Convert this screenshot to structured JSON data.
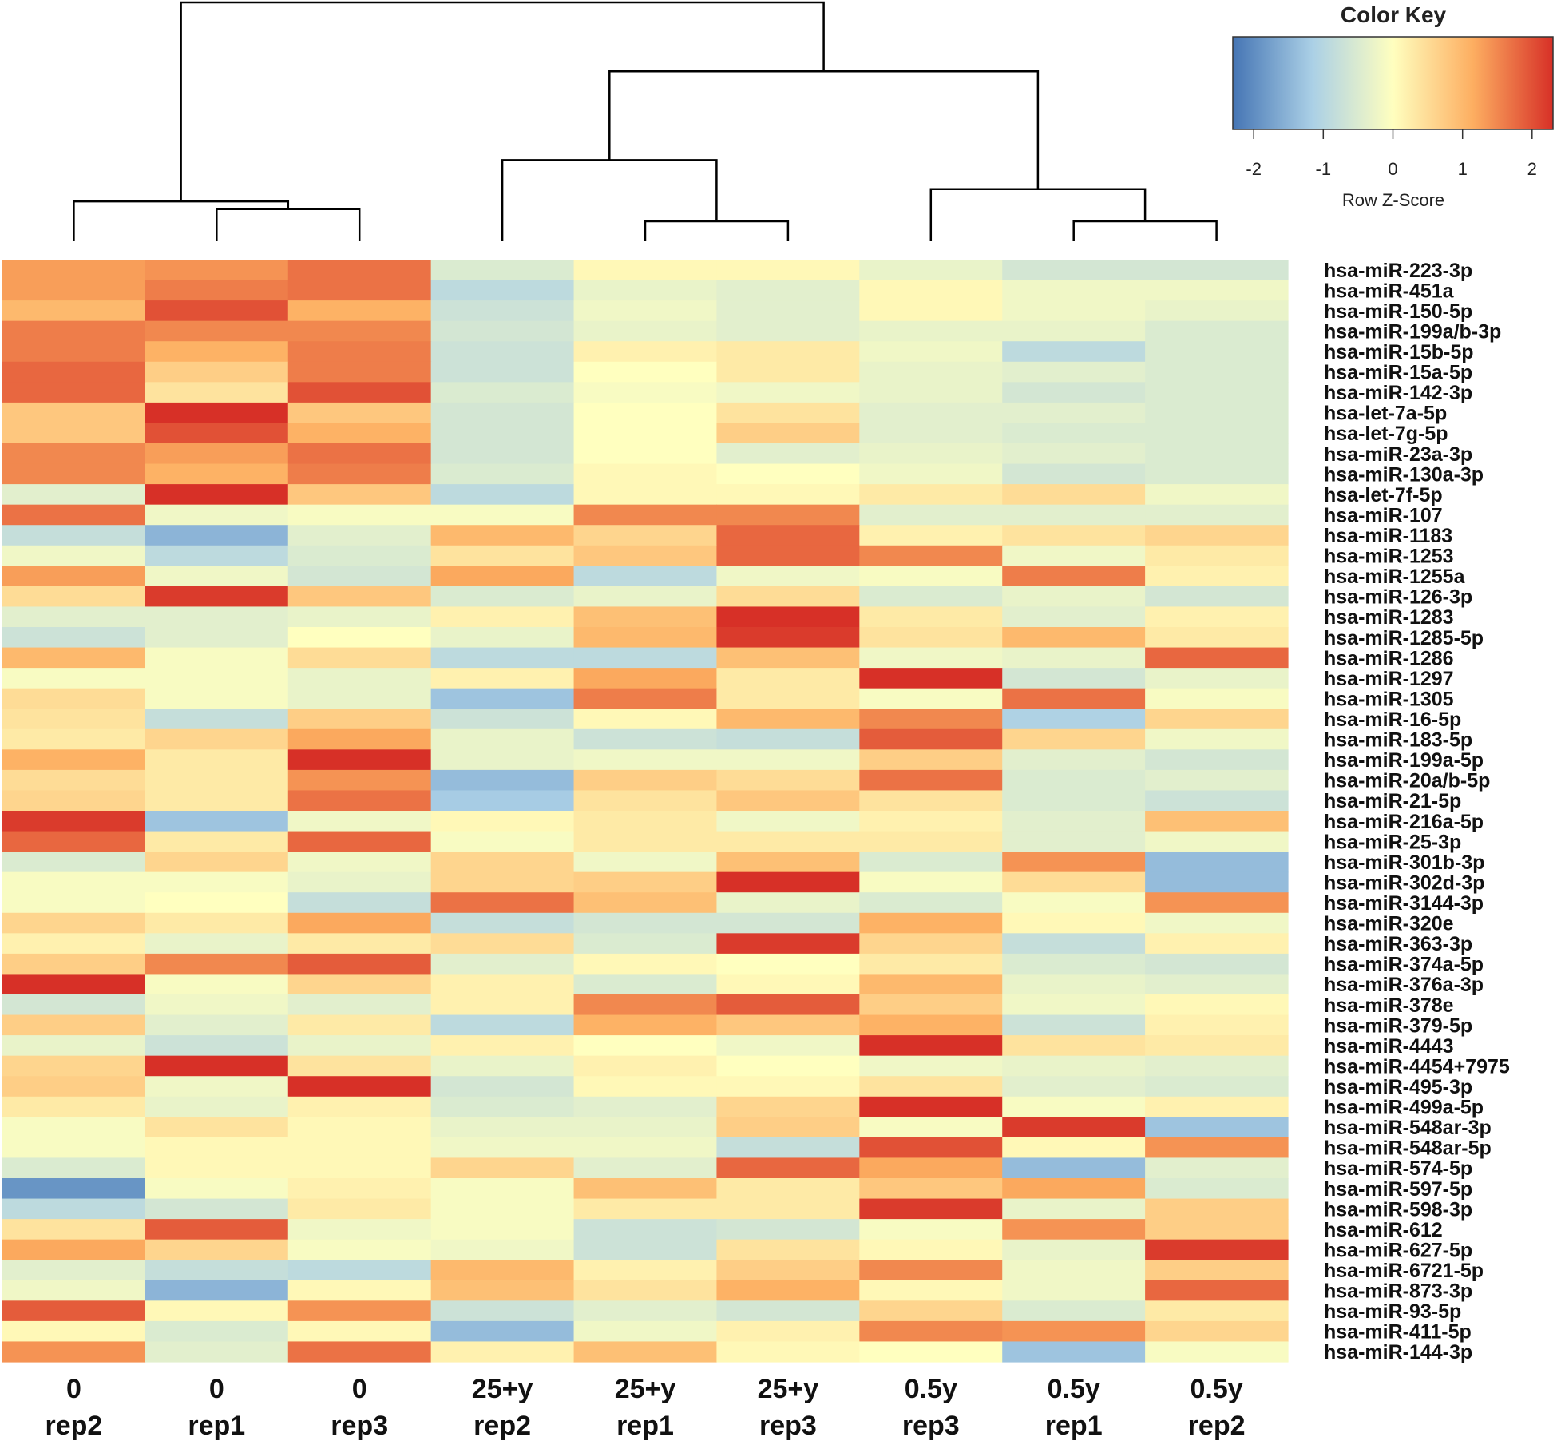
{
  "chart_data": {
    "type": "heatmap",
    "title": "",
    "color_key": {
      "title": "Color Key",
      "label": "Row Z-Score",
      "ticks": [
        "-2",
        "-1",
        "0",
        "1",
        "2"
      ],
      "range": [
        -2.3,
        2.3
      ],
      "colors": [
        "#4575b4",
        "#abd0e6",
        "#ffffbf",
        "#fdae61",
        "#d73027"
      ]
    },
    "columns": [
      {
        "group": "0",
        "rep": "rep2"
      },
      {
        "group": "0",
        "rep": "rep1"
      },
      {
        "group": "0",
        "rep": "rep3"
      },
      {
        "group": "25+y",
        "rep": "rep2"
      },
      {
        "group": "25+y",
        "rep": "rep1"
      },
      {
        "group": "25+y",
        "rep": "rep3"
      },
      {
        "group": "0.5y",
        "rep": "rep3"
      },
      {
        "group": "0.5y",
        "rep": "rep1"
      },
      {
        "group": "0.5y",
        "rep": "rep2"
      }
    ],
    "rows": [
      "hsa-miR-223-3p",
      "hsa-miR-451a",
      "hsa-miR-150-5p",
      "hsa-miR-199a/b-3p",
      "hsa-miR-15b-5p",
      "hsa-miR-15a-5p",
      "hsa-miR-142-3p",
      "hsa-let-7a-5p",
      "hsa-let-7g-5p",
      "hsa-miR-23a-3p",
      "hsa-miR-130a-3p",
      "hsa-let-7f-5p",
      "hsa-miR-107",
      "hsa-miR-1183",
      "hsa-miR-1253",
      "hsa-miR-1255a",
      "hsa-miR-126-3p",
      "hsa-miR-1283",
      "hsa-miR-1285-5p",
      "hsa-miR-1286",
      "hsa-miR-1297",
      "hsa-miR-1305",
      "hsa-miR-16-5p",
      "hsa-miR-183-5p",
      "hsa-miR-199a-5p",
      "hsa-miR-20a/b-5p",
      "hsa-miR-21-5p",
      "hsa-miR-216a-5p",
      "hsa-miR-25-3p",
      "hsa-miR-301b-3p",
      "hsa-miR-302d-3p",
      "hsa-miR-3144-3p",
      "hsa-miR-320e",
      "hsa-miR-363-3p",
      "hsa-miR-374a-5p",
      "hsa-miR-376a-3p",
      "hsa-miR-378e",
      "hsa-miR-379-5p",
      "hsa-miR-4443",
      "hsa-miR-4454+7975",
      "hsa-miR-495-3p",
      "hsa-miR-499a-5p",
      "hsa-miR-548ar-3p",
      "hsa-miR-548ar-5p",
      "hsa-miR-574-5p",
      "hsa-miR-597-5p",
      "hsa-miR-598-3p",
      "hsa-miR-612",
      "hsa-miR-627-5p",
      "hsa-miR-6721-5p",
      "hsa-miR-873-3p",
      "hsa-miR-93-5p",
      "hsa-miR-411-5p",
      "hsa-miR-144-3p"
    ],
    "values": [
      [
        1.3,
        1.4,
        1.7,
        -0.5,
        0.1,
        0.1,
        -0.3,
        -0.6,
        -0.6
      ],
      [
        1.3,
        1.6,
        1.7,
        -0.9,
        -0.3,
        -0.4,
        0.1,
        -0.2,
        -0.2
      ],
      [
        1.0,
        2.0,
        1.1,
        -0.7,
        -0.2,
        -0.4,
        0.1,
        -0.2,
        -0.3
      ],
      [
        1.6,
        1.5,
        1.5,
        -0.6,
        -0.3,
        -0.4,
        -0.3,
        -0.3,
        -0.5
      ],
      [
        1.6,
        1.1,
        1.6,
        -0.7,
        0.2,
        0.3,
        -0.2,
        -0.9,
        -0.5
      ],
      [
        1.8,
        0.7,
        1.6,
        -0.7,
        0.0,
        0.3,
        -0.3,
        -0.4,
        -0.5
      ],
      [
        1.8,
        0.4,
        2.0,
        -0.5,
        -0.1,
        -0.2,
        -0.3,
        -0.6,
        -0.5
      ],
      [
        0.8,
        2.3,
        0.8,
        -0.6,
        0.0,
        0.4,
        -0.4,
        -0.4,
        -0.5
      ],
      [
        0.8,
        2.0,
        1.1,
        -0.6,
        0.0,
        0.7,
        -0.4,
        -0.5,
        -0.5
      ],
      [
        1.5,
        1.3,
        1.7,
        -0.6,
        0.0,
        -0.4,
        -0.3,
        -0.4,
        -0.5
      ],
      [
        1.5,
        1.1,
        1.6,
        -0.5,
        0.1,
        0.0,
        -0.2,
        -0.6,
        -0.5
      ],
      [
        -0.4,
        2.3,
        0.8,
        -0.9,
        0.1,
        0.1,
        0.3,
        0.5,
        -0.2
      ],
      [
        1.7,
        -0.2,
        -0.1,
        -0.1,
        1.5,
        1.5,
        -0.4,
        -0.4,
        -0.4
      ],
      [
        -0.8,
        -1.5,
        -0.4,
        1.0,
        0.6,
        1.8,
        0.2,
        0.4,
        0.6
      ],
      [
        -0.2,
        -0.9,
        -0.5,
        0.4,
        0.8,
        1.8,
        1.5,
        -0.2,
        0.3
      ],
      [
        1.3,
        -0.2,
        -0.6,
        1.2,
        -0.9,
        -0.2,
        -0.1,
        1.6,
        0.2
      ],
      [
        0.5,
        2.2,
        0.8,
        -0.5,
        -0.3,
        0.5,
        -0.5,
        -0.3,
        -0.6
      ],
      [
        -0.4,
        -0.4,
        -0.3,
        0.2,
        0.9,
        2.3,
        0.3,
        -0.4,
        0.2
      ],
      [
        -0.7,
        -0.4,
        0.0,
        -0.3,
        1.0,
        2.2,
        0.4,
        1.0,
        0.3
      ],
      [
        1.0,
        -0.1,
        0.5,
        -0.9,
        -0.9,
        0.9,
        -0.2,
        -0.3,
        1.8
      ],
      [
        -0.1,
        -0.1,
        -0.3,
        0.2,
        1.2,
        0.3,
        2.3,
        -0.6,
        -0.3
      ],
      [
        0.5,
        -0.1,
        -0.3,
        -1.3,
        1.6,
        0.3,
        -0.1,
        1.7,
        -0.1
      ],
      [
        0.4,
        -0.8,
        0.7,
        -0.7,
        0.1,
        1.0,
        1.5,
        -1.1,
        0.6
      ],
      [
        0.3,
        0.6,
        1.2,
        -0.3,
        -0.7,
        -0.8,
        1.9,
        0.6,
        -0.2
      ],
      [
        1.1,
        0.3,
        2.3,
        -0.3,
        -0.2,
        -0.2,
        0.7,
        -0.4,
        -0.6
      ],
      [
        0.5,
        0.3,
        1.4,
        -1.4,
        0.7,
        0.5,
        1.7,
        -0.5,
        -0.4
      ],
      [
        0.6,
        0.3,
        1.7,
        -1.2,
        0.4,
        0.8,
        0.4,
        -0.5,
        -0.7
      ],
      [
        2.2,
        -1.3,
        -0.2,
        0.1,
        0.3,
        -0.2,
        0.2,
        -0.4,
        0.9
      ],
      [
        1.8,
        0.3,
        1.8,
        -0.1,
        0.3,
        0.3,
        0.3,
        -0.4,
        -0.2
      ],
      [
        -0.5,
        0.6,
        -0.2,
        0.6,
        -0.2,
        0.9,
        -0.5,
        1.4,
        -1.4
      ],
      [
        -0.1,
        -0.1,
        -0.3,
        0.6,
        0.7,
        2.3,
        -0.1,
        0.5,
        -1.4
      ],
      [
        -0.1,
        0.0,
        -0.8,
        1.7,
        0.9,
        -0.3,
        -0.5,
        -0.1,
        1.4
      ],
      [
        0.6,
        0.3,
        1.2,
        -0.8,
        -0.6,
        -0.6,
        1.1,
        0.1,
        -0.2
      ],
      [
        0.2,
        -0.3,
        0.3,
        0.5,
        -0.5,
        2.2,
        0.6,
        -0.8,
        0.2
      ],
      [
        0.7,
        1.5,
        1.9,
        -0.4,
        0.1,
        0.0,
        0.3,
        -0.5,
        -0.6
      ],
      [
        2.3,
        -0.1,
        0.6,
        0.2,
        -0.5,
        0.1,
        1.0,
        -0.3,
        -0.4
      ],
      [
        -0.6,
        -0.2,
        -0.4,
        0.2,
        1.5,
        1.9,
        0.7,
        -0.2,
        0.1
      ],
      [
        0.7,
        -0.4,
        0.3,
        -0.9,
        1.1,
        0.8,
        1.1,
        -0.7,
        0.2
      ],
      [
        -0.3,
        -0.7,
        -0.3,
        0.2,
        0.0,
        -0.2,
        2.4,
        0.4,
        0.3
      ],
      [
        0.6,
        2.3,
        0.4,
        -0.3,
        0.2,
        0.0,
        -0.2,
        -0.3,
        -0.4
      ],
      [
        0.7,
        -0.2,
        2.3,
        -0.6,
        0.1,
        0.1,
        0.4,
        -0.4,
        -0.5
      ],
      [
        0.3,
        -0.3,
        0.2,
        -0.5,
        -0.4,
        0.6,
        2.4,
        -0.1,
        0.2
      ],
      [
        -0.1,
        0.4,
        0.1,
        -0.3,
        -0.3,
        0.7,
        -0.1,
        2.2,
        -1.3
      ],
      [
        -0.1,
        0.1,
        0.1,
        -0.2,
        -0.2,
        -0.8,
        2.0,
        0.1,
        1.4
      ],
      [
        -0.5,
        0.1,
        0.1,
        0.6,
        -0.4,
        1.8,
        1.2,
        -1.4,
        -0.4
      ],
      [
        -1.9,
        -0.1,
        0.2,
        -0.1,
        0.9,
        0.3,
        0.8,
        1.2,
        -0.5
      ],
      [
        -0.9,
        -0.6,
        0.3,
        -0.1,
        0.3,
        0.3,
        2.2,
        -0.3,
        0.7
      ],
      [
        0.4,
        1.9,
        -0.2,
        -0.1,
        -0.7,
        -0.6,
        -0.1,
        1.4,
        0.7
      ],
      [
        1.2,
        0.6,
        -0.1,
        -0.2,
        -0.7,
        0.4,
        0.1,
        -0.3,
        2.2
      ],
      [
        -0.4,
        -0.8,
        -0.9,
        1.0,
        0.2,
        0.7,
        1.5,
        -0.2,
        0.7
      ],
      [
        -0.2,
        -1.5,
        0.1,
        0.9,
        0.4,
        1.1,
        0.1,
        -0.2,
        1.8
      ],
      [
        1.9,
        0.1,
        1.4,
        -0.7,
        -0.4,
        -0.6,
        0.6,
        -0.5,
        0.3
      ],
      [
        0.1,
        -0.5,
        0.1,
        -1.4,
        -0.2,
        0.2,
        1.5,
        1.4,
        0.6
      ],
      [
        1.4,
        -0.4,
        1.7,
        0.2,
        0.9,
        0.1,
        0.0,
        -1.3,
        -0.1
      ]
    ],
    "dendrogram": {
      "order": [
        "0 rep2",
        "0 rep1",
        "0 rep3",
        "25+y rep2",
        "25+y rep1",
        "25+y rep3",
        "0.5y rep3",
        "0.5y rep1",
        "0.5y rep2"
      ],
      "merges": [
        {
          "left": [
            1
          ],
          "right": [
            2
          ],
          "height": 0.2
        },
        {
          "left": [
            0
          ],
          "right": [
            1,
            2
          ],
          "height": 0.25
        },
        {
          "left": [
            4
          ],
          "right": [
            5
          ],
          "height": 0.12
        },
        {
          "left": [
            3
          ],
          "right": [
            4,
            5
          ],
          "height": 0.52
        },
        {
          "left": [
            7
          ],
          "right": [
            8
          ],
          "height": 0.12
        },
        {
          "left": [
            6
          ],
          "right": [
            7,
            8
          ],
          "height": 0.33
        },
        {
          "left": [
            3,
            4,
            5
          ],
          "right": [
            6,
            7,
            8
          ],
          "height": 1.1
        },
        {
          "left": [
            0,
            1,
            2
          ],
          "right": [
            3,
            4,
            5,
            6,
            7,
            8
          ],
          "height": 1.55
        }
      ]
    }
  }
}
